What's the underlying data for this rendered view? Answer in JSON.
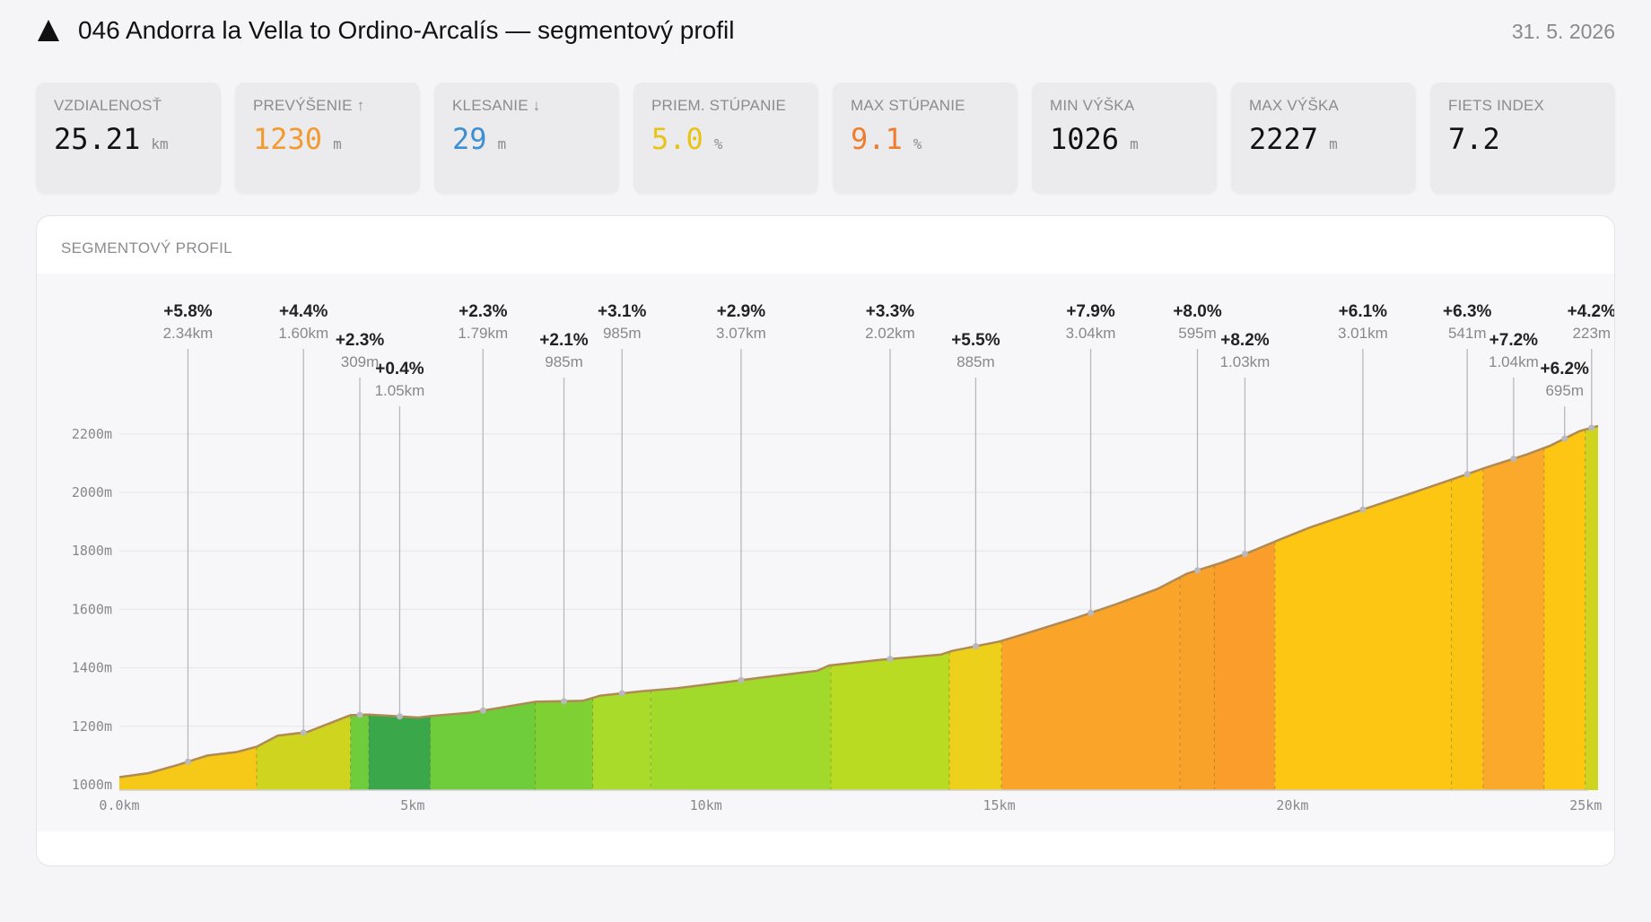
{
  "header": {
    "title": "046 Andorra la Vella to Ordino-Arcalís — segmentový profil",
    "date": "31. 5. 2026",
    "icon": "mountain-icon"
  },
  "stats": [
    {
      "label": "VZDIALENOSŤ",
      "value": "25.21",
      "unit": "km",
      "color": "#111111"
    },
    {
      "label": "PREVÝŠENIE ↑",
      "value": "1230",
      "unit": "m",
      "color": "#f39a2e"
    },
    {
      "label": "KLESANIE ↓",
      "value": "29",
      "unit": "m",
      "color": "#3d8fd1"
    },
    {
      "label": "PRIEM. STÚPANIE",
      "value": "5.0",
      "unit": "%",
      "color": "#e8c313"
    },
    {
      "label": "MAX STÚPANIE",
      "value": "9.1",
      "unit": "%",
      "color": "#f07c2e"
    },
    {
      "label": "MIN VÝŠKA",
      "value": "1026",
      "unit": "m",
      "color": "#111111"
    },
    {
      "label": "MAX VÝŠKA",
      "value": "2227",
      "unit": "m",
      "color": "#111111"
    },
    {
      "label": "FIETS INDEX",
      "value": "7.2",
      "unit": "",
      "color": "#111111"
    }
  ],
  "card": {
    "title": "SEGMENTOVÝ PROFIL"
  },
  "chart_data": {
    "type": "area",
    "title": "SEGMENTOVÝ PROFIL",
    "xlabel": "",
    "ylabel": "",
    "xlim": [
      0,
      25.21
    ],
    "ylim": [
      1000,
      2227
    ],
    "x_ticks": [
      {
        "value": 0,
        "label": "0.0km"
      },
      {
        "value": 5,
        "label": "5km"
      },
      {
        "value": 10,
        "label": "10km"
      },
      {
        "value": 15,
        "label": "15km"
      },
      {
        "value": 20,
        "label": "20km"
      },
      {
        "value": 25,
        "label": "25km"
      }
    ],
    "y_ticks": [
      {
        "value": 1000,
        "label": "1000m"
      },
      {
        "value": 1200,
        "label": "1200m"
      },
      {
        "value": 1400,
        "label": "1400m"
      },
      {
        "value": 1600,
        "label": "1600m"
      },
      {
        "value": 1800,
        "label": "1800m"
      },
      {
        "value": 2000,
        "label": "2000m"
      },
      {
        "value": 2200,
        "label": "2200m"
      }
    ],
    "grid": true,
    "profile": [
      [
        0,
        1026
      ],
      [
        0.5,
        1040
      ],
      [
        1.0,
        1068
      ],
      [
        1.5,
        1100
      ],
      [
        2.0,
        1112
      ],
      [
        2.34,
        1130
      ],
      [
        2.7,
        1168
      ],
      [
        3.2,
        1180
      ],
      [
        3.94,
        1238
      ],
      [
        4.25,
        1240
      ],
      [
        5.1,
        1230
      ],
      [
        5.3,
        1235
      ],
      [
        6.0,
        1247
      ],
      [
        7.1,
        1284
      ],
      [
        7.9,
        1287
      ],
      [
        8.2,
        1305
      ],
      [
        8.9,
        1320
      ],
      [
        9.5,
        1330
      ],
      [
        10.3,
        1350
      ],
      [
        11.0,
        1368
      ],
      [
        11.9,
        1390
      ],
      [
        12.1,
        1408
      ],
      [
        13.0,
        1428
      ],
      [
        14.0,
        1445
      ],
      [
        14.2,
        1458
      ],
      [
        15.0,
        1490
      ],
      [
        15.5,
        1520
      ],
      [
        16.3,
        1570
      ],
      [
        17.0,
        1618
      ],
      [
        17.7,
        1670
      ],
      [
        18.2,
        1722
      ],
      [
        18.8,
        1760
      ],
      [
        19.2,
        1790
      ],
      [
        19.8,
        1840
      ],
      [
        20.3,
        1880
      ],
      [
        21.0,
        1928
      ],
      [
        22.0,
        1995
      ],
      [
        22.8,
        2050
      ],
      [
        23.3,
        2085
      ],
      [
        24.0,
        2130
      ],
      [
        24.4,
        2160
      ],
      [
        24.9,
        2210
      ],
      [
        25.21,
        2227
      ]
    ],
    "segments": [
      {
        "start": 0,
        "end": 2.34,
        "grade": "+5.8%",
        "length": "2.34km",
        "color": "#f6c817",
        "label_x": 1.17,
        "label_row": 0
      },
      {
        "start": 2.34,
        "end": 3.94,
        "grade": "+4.4%",
        "length": "1.60km",
        "color": "#cfd41f",
        "label_x": 3.14,
        "label_row": 0
      },
      {
        "start": 3.94,
        "end": 4.25,
        "grade": "+2.3%",
        "length": "309m",
        "color": "#6fcc3a",
        "label_x": 4.1,
        "label_row": 1
      },
      {
        "start": 4.25,
        "end": 5.3,
        "grade": "+0.4%",
        "length": "1.05km",
        "color": "#3aa84a",
        "label_x": 4.78,
        "label_row": 2
      },
      {
        "start": 5.3,
        "end": 7.09,
        "grade": "+2.3%",
        "length": "1.79km",
        "color": "#6fcc3a",
        "label_x": 6.2,
        "label_row": 0
      },
      {
        "start": 7.09,
        "end": 8.07,
        "grade": "+2.1%",
        "length": "985m",
        "color": "#7fd033",
        "label_x": 7.58,
        "label_row": 1
      },
      {
        "start": 8.07,
        "end": 9.06,
        "grade": "+3.1%",
        "length": "985m",
        "color": "#a9dc2a",
        "label_x": 8.57,
        "label_row": 0
      },
      {
        "start": 9.06,
        "end": 12.13,
        "grade": "+2.9%",
        "length": "3.07km",
        "color": "#a2da2b",
        "label_x": 10.6,
        "label_row": 0
      },
      {
        "start": 12.13,
        "end": 14.15,
        "grade": "+3.3%",
        "length": "2.02km",
        "color": "#b9dc22",
        "label_x": 13.14,
        "label_row": 0
      },
      {
        "start": 14.15,
        "end": 15.04,
        "grade": "+5.5%",
        "length": "885m",
        "color": "#ecd01a",
        "label_x": 14.6,
        "label_row": 1
      },
      {
        "start": 15.04,
        "end": 18.08,
        "grade": "+7.9%",
        "length": "3.04km",
        "color": "#faa42a",
        "label_x": 16.56,
        "label_row": 0
      },
      {
        "start": 18.08,
        "end": 18.67,
        "grade": "+8.0%",
        "length": "595m",
        "color": "#f9a22a",
        "label_x": 18.38,
        "label_row": 0
      },
      {
        "start": 18.67,
        "end": 19.7,
        "grade": "+8.2%",
        "length": "1.03km",
        "color": "#fa9d2b",
        "label_x": 19.19,
        "label_row": 1
      },
      {
        "start": 19.7,
        "end": 22.71,
        "grade": "+6.1%",
        "length": "3.01km",
        "color": "#fcc612",
        "label_x": 21.2,
        "label_row": 0
      },
      {
        "start": 22.71,
        "end": 23.25,
        "grade": "+6.3%",
        "length": "541m",
        "color": "#fbc413",
        "label_x": 22.98,
        "label_row": 0
      },
      {
        "start": 23.25,
        "end": 24.29,
        "grade": "+7.2%",
        "length": "1.04km",
        "color": "#faa92a",
        "label_x": 23.77,
        "label_row": 1
      },
      {
        "start": 24.29,
        "end": 24.99,
        "grade": "+6.2%",
        "length": "695m",
        "color": "#fcc612",
        "label_x": 24.64,
        "label_row": 2
      },
      {
        "start": 24.99,
        "end": 25.21,
        "grade": "+4.2%",
        "length": "223m",
        "color": "#cfd41f",
        "label_x": 25.1,
        "label_row": 0
      }
    ]
  }
}
